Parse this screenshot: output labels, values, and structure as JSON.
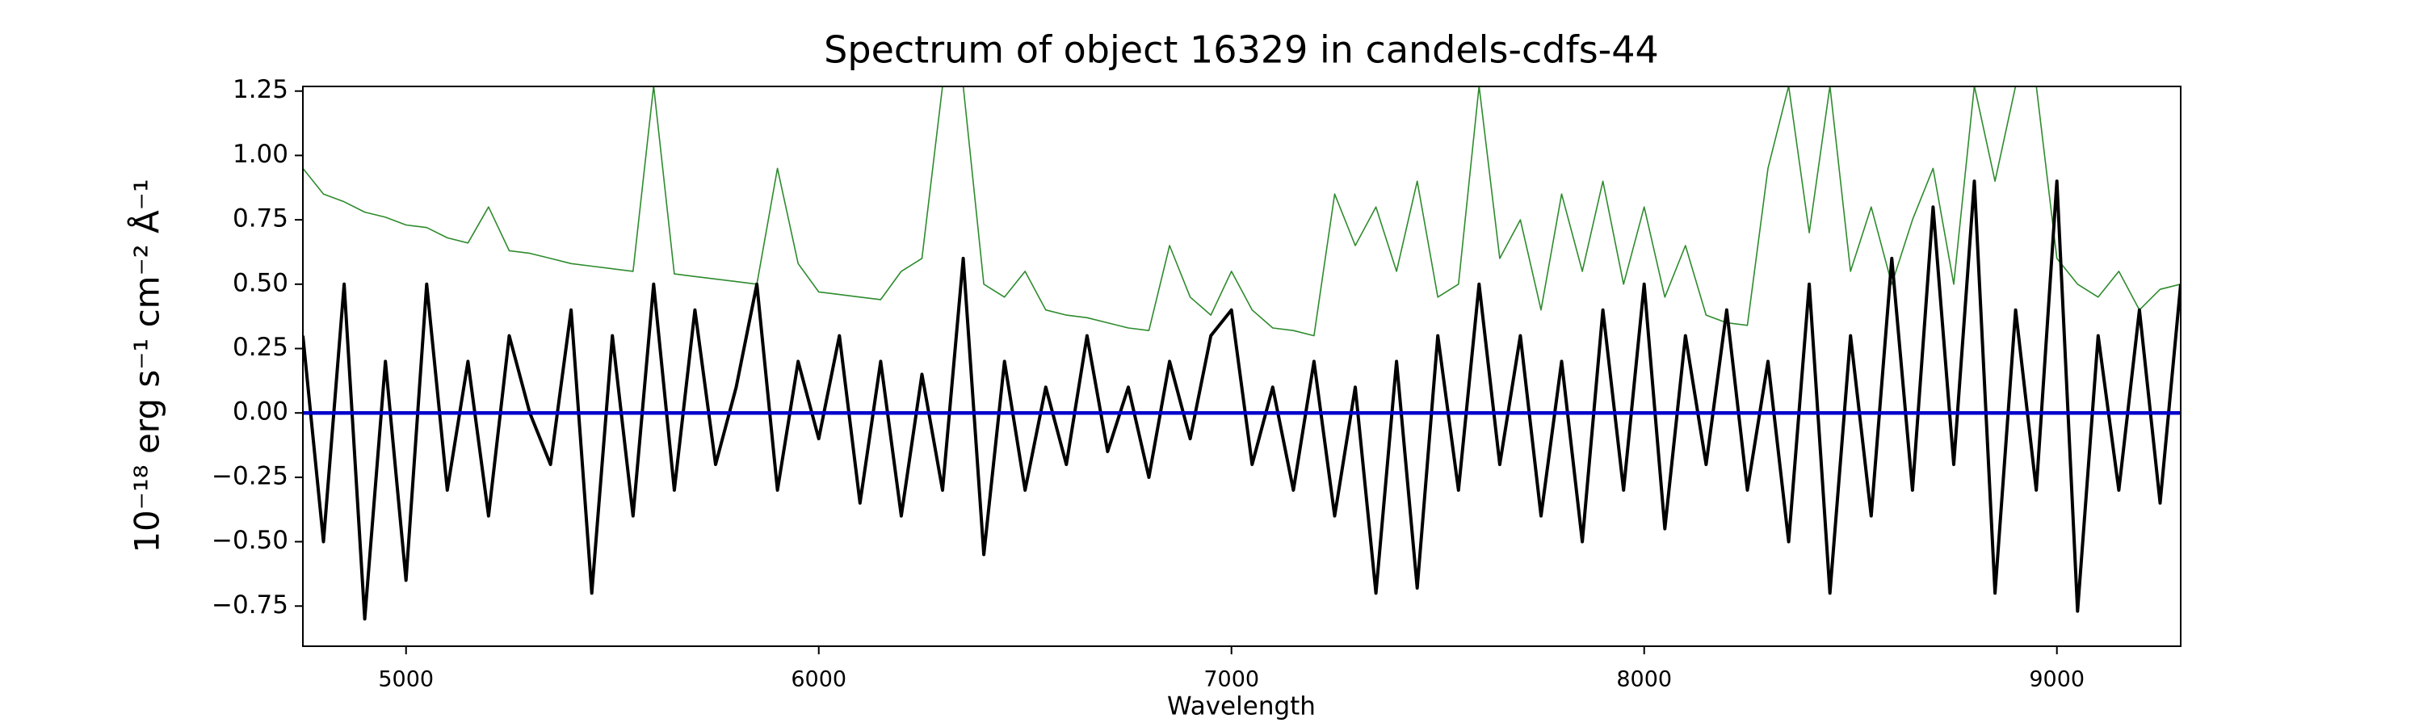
{
  "chart_data": {
    "type": "line",
    "title": "Spectrum of object 16329 in candels-cdfs-44",
    "xlabel": "Wavelength",
    "ylabel": "10⁻¹⁸ erg s⁻¹ cm⁻² Å⁻¹",
    "xlim": [
      4750,
      9300
    ],
    "ylim": [
      -0.906,
      1.268
    ],
    "xticks": [
      5000,
      6000,
      7000,
      8000,
      9000
    ],
    "yticks": [
      {
        "value": -0.75,
        "label": "−0.75"
      },
      {
        "value": -0.5,
        "label": "−0.50"
      },
      {
        "value": -0.25,
        "label": "−0.25"
      },
      {
        "value": 0,
        "label": "0.00"
      },
      0.25,
      {
        "value": 0.5,
        "label": "0.50"
      },
      0.75,
      {
        "value": 1,
        "label": "1.00"
      },
      1.25
    ],
    "x": [
      4750,
      4800,
      4850,
      4900,
      4950,
      5000,
      5050,
      5100,
      5150,
      5200,
      5250,
      5300,
      5350,
      5400,
      5450,
      5500,
      5550,
      5600,
      5650,
      5700,
      5750,
      5800,
      5850,
      5900,
      5950,
      6000,
      6050,
      6100,
      6150,
      6200,
      6250,
      6300,
      6350,
      6400,
      6450,
      6500,
      6550,
      6600,
      6650,
      6700,
      6750,
      6800,
      6850,
      6900,
      6950,
      7000,
      7050,
      7100,
      7150,
      7200,
      7250,
      7300,
      7350,
      7400,
      7450,
      7500,
      7550,
      7600,
      7650,
      7700,
      7750,
      7800,
      7850,
      7900,
      7950,
      8000,
      8050,
      8100,
      8150,
      8200,
      8250,
      8300,
      8350,
      8400,
      8450,
      8500,
      8550,
      8600,
      8650,
      8700,
      8750,
      8800,
      8850,
      8900,
      8950,
      9000,
      9050,
      9100,
      9150,
      9200,
      9250,
      9300
    ],
    "series": [
      {
        "color": "#2e8b2e",
        "width": 1.6,
        "values": [
          0.95,
          0.85,
          0.82,
          0.78,
          0.76,
          0.73,
          0.72,
          0.68,
          0.66,
          0.8,
          0.63,
          0.62,
          0.6,
          0.58,
          0.57,
          0.56,
          0.55,
          1.27,
          0.54,
          0.53,
          0.52,
          0.51,
          0.5,
          0.95,
          0.58,
          0.47,
          0.46,
          0.45,
          0.44,
          0.55,
          0.6,
          1.27,
          1.27,
          0.5,
          0.45,
          0.55,
          0.4,
          0.38,
          0.37,
          0.35,
          0.33,
          0.32,
          0.65,
          0.45,
          0.38,
          0.55,
          0.4,
          0.33,
          0.32,
          0.3,
          0.85,
          0.65,
          0.8,
          0.55,
          0.9,
          0.45,
          0.5,
          1.27,
          0.6,
          0.75,
          0.4,
          0.85,
          0.55,
          0.9,
          0.5,
          0.8,
          0.45,
          0.65,
          0.38,
          0.35,
          0.34,
          0.95,
          1.27,
          0.7,
          1.27,
          0.55,
          0.8,
          0.5,
          0.75,
          0.95,
          0.5,
          1.27,
          0.9,
          1.27,
          1.27,
          0.6,
          0.5,
          0.45,
          0.55,
          0.4,
          0.48,
          0.5
        ]
      },
      {
        "color": "#000000",
        "width": 4,
        "values": [
          0.3,
          -0.5,
          0.5,
          -0.8,
          0.2,
          -0.65,
          0.5,
          -0.3,
          0.2,
          -0.4,
          0.3,
          0.0,
          -0.2,
          0.4,
          -0.7,
          0.3,
          -0.4,
          0.5,
          -0.3,
          0.4,
          -0.2,
          0.1,
          0.5,
          -0.3,
          0.2,
          -0.1,
          0.3,
          -0.35,
          0.2,
          -0.4,
          0.15,
          -0.3,
          0.6,
          -0.55,
          0.2,
          -0.3,
          0.1,
          -0.2,
          0.3,
          -0.15,
          0.1,
          -0.25,
          0.2,
          -0.1,
          0.3,
          0.4,
          -0.2,
          0.1,
          -0.3,
          0.2,
          -0.4,
          0.1,
          -0.7,
          0.2,
          -0.68,
          0.3,
          -0.3,
          0.5,
          -0.2,
          0.3,
          -0.4,
          0.2,
          -0.5,
          0.4,
          -0.3,
          0.5,
          -0.45,
          0.3,
          -0.2,
          0.4,
          -0.3,
          0.2,
          -0.5,
          0.5,
          -0.7,
          0.3,
          -0.4,
          0.6,
          -0.3,
          0.8,
          -0.2,
          0.9,
          -0.7,
          0.4,
          -0.3,
          0.9,
          -0.77,
          0.3,
          -0.3,
          0.4,
          -0.35,
          0.5
        ]
      },
      {
        "color": "#0000cc",
        "width": 4.5,
        "x": [
          4750,
          9300
        ],
        "values": [
          0,
          0
        ]
      }
    ]
  }
}
